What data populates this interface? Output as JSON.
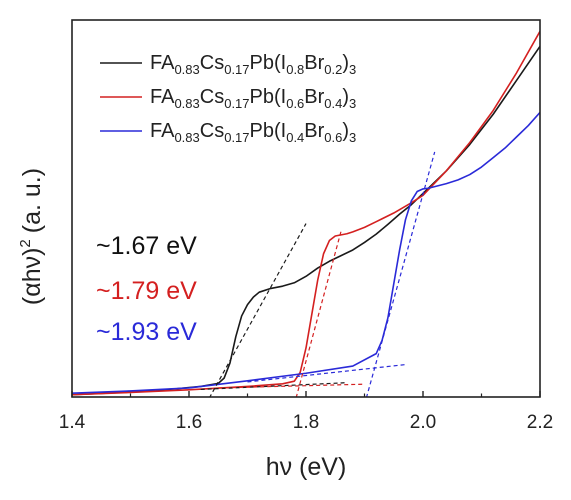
{
  "chart_data": {
    "type": "line",
    "title": "",
    "xlabel": "hν (eV)",
    "ylabel_main": "(αhν)",
    "ylabel_sup": "2",
    "ylabel_unit": "(a. u.)",
    "xlim": [
      1.4,
      2.2
    ],
    "ylim": [
      0,
      100
    ],
    "x_ticks": [
      1.4,
      1.6,
      1.8,
      2.0,
      2.2
    ],
    "x_tick_labels": [
      "1.4",
      "1.6",
      "1.8",
      "2.0",
      "2.2"
    ],
    "grid": false,
    "legend_position": "top-left",
    "series": [
      {
        "name": "FA0.83Cs0.17Pb(I0.8Br0.2)3",
        "legend_parts": [
          {
            "t": "FA",
            "sub": false
          },
          {
            "t": "0.83",
            "sub": true
          },
          {
            "t": "Cs",
            "sub": false
          },
          {
            "t": "0.17",
            "sub": true
          },
          {
            "t": "Pb(I",
            "sub": false
          },
          {
            "t": "0.8",
            "sub": true
          },
          {
            "t": "Br",
            "sub": false
          },
          {
            "t": "0.2",
            "sub": true
          },
          {
            "t": ")",
            "sub": false
          },
          {
            "t": "3",
            "sub": true
          }
        ],
        "color": "#1a1a1a",
        "x": [
          1.4,
          1.5,
          1.58,
          1.62,
          1.65,
          1.66,
          1.67,
          1.68,
          1.69,
          1.7,
          1.71,
          1.72,
          1.74,
          1.76,
          1.78,
          1.8,
          1.82,
          1.84,
          1.86,
          1.88,
          1.9,
          1.92,
          1.94,
          1.96,
          1.98,
          2.0,
          2.04,
          2.08,
          2.12,
          2.16,
          2.2
        ],
        "y": [
          0.6,
          1.3,
          2.2,
          2.8,
          3.6,
          5.0,
          9.0,
          16.0,
          21.5,
          24.5,
          26.5,
          27.8,
          28.8,
          29.4,
          30.3,
          32.0,
          34.2,
          36.0,
          37.5,
          39.0,
          41.0,
          43.2,
          45.8,
          48.5,
          51.0,
          54.0,
          60.0,
          67.0,
          75.0,
          84.0,
          93.0
        ]
      },
      {
        "name": "FA0.83Cs0.17Pb(I0.6Br0.4)3",
        "legend_parts": [
          {
            "t": "FA",
            "sub": false
          },
          {
            "t": "0.83",
            "sub": true
          },
          {
            "t": "Cs",
            "sub": false
          },
          {
            "t": "0.17",
            "sub": true
          },
          {
            "t": "Pb(I",
            "sub": false
          },
          {
            "t": "0.6",
            "sub": true
          },
          {
            "t": "Br",
            "sub": false
          },
          {
            "t": "0.4",
            "sub": true
          },
          {
            "t": ")",
            "sub": false
          },
          {
            "t": "3",
            "sub": true
          }
        ],
        "color": "#d42020",
        "x": [
          1.4,
          1.5,
          1.6,
          1.7,
          1.76,
          1.78,
          1.79,
          1.8,
          1.81,
          1.82,
          1.83,
          1.84,
          1.85,
          1.86,
          1.87,
          1.88,
          1.9,
          1.92,
          1.95,
          1.98,
          2.0,
          2.04,
          2.08,
          2.12,
          2.16,
          2.2
        ],
        "y": [
          0.6,
          1.2,
          1.9,
          2.8,
          3.5,
          4.2,
          6.5,
          13.0,
          22.0,
          31.0,
          38.0,
          41.5,
          42.7,
          43.0,
          43.3,
          43.8,
          45.0,
          46.5,
          48.8,
          51.5,
          53.5,
          60.0,
          67.5,
          76.0,
          86.0,
          97.0
        ]
      },
      {
        "name": "FA0.83Cs0.17Pb(I0.4Br0.6)3",
        "legend_parts": [
          {
            "t": "FA",
            "sub": false
          },
          {
            "t": "0.83",
            "sub": true
          },
          {
            "t": "Cs",
            "sub": false
          },
          {
            "t": "0.17",
            "sub": true
          },
          {
            "t": "Pb(I",
            "sub": false
          },
          {
            "t": "0.4",
            "sub": true
          },
          {
            "t": "Br",
            "sub": false
          },
          {
            "t": "0.6",
            "sub": true
          },
          {
            "t": ")",
            "sub": false
          },
          {
            "t": "3",
            "sub": true
          }
        ],
        "color": "#2a2ad8",
        "x": [
          1.4,
          1.5,
          1.6,
          1.7,
          1.8,
          1.88,
          1.92,
          1.93,
          1.94,
          1.95,
          1.96,
          1.97,
          1.98,
          1.99,
          2.0,
          2.01,
          2.02,
          2.04,
          2.06,
          2.08,
          2.1,
          2.12,
          2.14,
          2.16,
          2.18,
          2.2
        ],
        "y": [
          1.0,
          1.6,
          2.4,
          4.3,
          6.3,
          8.2,
          11.5,
          15.0,
          21.0,
          30.0,
          39.0,
          47.0,
          52.0,
          54.5,
          55.2,
          55.4,
          55.8,
          56.6,
          57.6,
          59.0,
          61.0,
          63.5,
          66.0,
          69.0,
          72.0,
          75.5
        ]
      }
    ],
    "tangent_lines": [
      {
        "color": "#1a1a1a",
        "x": [
          1.6,
          1.8
        ],
        "y": [
          -10.0,
          46.0
        ]
      },
      {
        "color": "#1a1a1a",
        "x": [
          1.62,
          1.87
        ],
        "y": [
          2.0,
          3.8
        ]
      },
      {
        "color": "#d42020",
        "x": [
          1.78,
          1.86
        ],
        "y": [
          -2.0,
          44.0
        ]
      },
      {
        "color": "#d42020",
        "x": [
          1.65,
          1.9
        ],
        "y": [
          2.4,
          3.4
        ]
      },
      {
        "color": "#2a2ad8",
        "x": [
          1.9,
          2.02
        ],
        "y": [
          -2.0,
          65.0
        ]
      },
      {
        "color": "#2a2ad8",
        "x": [
          1.7,
          1.97
        ],
        "y": [
          4.0,
          8.6
        ]
      }
    ],
    "annotations": [
      {
        "text": "~1.67 eV",
        "color": "#111111"
      },
      {
        "text": "~1.79 eV",
        "color": "#d42020"
      },
      {
        "text": "~1.93 eV",
        "color": "#2a2ad8"
      }
    ]
  }
}
